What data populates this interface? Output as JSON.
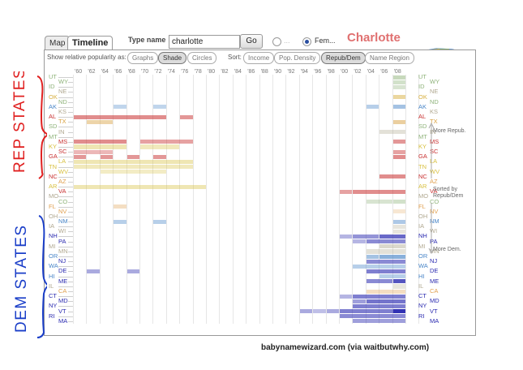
{
  "tabs": [
    {
      "label": "Map"
    },
    {
      "label": "Timeline"
    }
  ],
  "search": {
    "label": "Type name",
    "value": "charlotte",
    "go_label": "Go"
  },
  "gender": {
    "option1": "...",
    "option2": "Fem...",
    "selected": "female"
  },
  "name_title": "Charlotte",
  "toolbar": {
    "show_label": "Show relative popularity as:",
    "show_options": [
      "Graphs",
      "Shade",
      "Circles"
    ],
    "show_selected": "Shade",
    "sort_label": "Sort:",
    "sort_options": [
      "Income",
      "Pop. Density",
      "Repub/Dem",
      "Name Region"
    ],
    "sort_selected": "Repub/Dem"
  },
  "years": [
    "'60",
    "'62",
    "'64",
    "'66",
    "'68",
    "'70",
    "'72",
    "'74",
    "'76",
    "'78",
    "'80",
    "'82",
    "'84",
    "'86",
    "'88",
    "'90",
    "'92",
    "'94",
    "'96",
    "'98",
    "'00",
    "'02",
    "'04",
    "'06",
    "'08"
  ],
  "states": [
    {
      "abbr": "UT",
      "color": "#8fb37a"
    },
    {
      "abbr": "WY",
      "color": "#8fb37a"
    },
    {
      "abbr": "ID",
      "color": "#8fb37a"
    },
    {
      "abbr": "NE",
      "color": "#b0a890"
    },
    {
      "abbr": "OK",
      "color": "#d8b040"
    },
    {
      "abbr": "ND",
      "color": "#8fb37a"
    },
    {
      "abbr": "AK",
      "color": "#4a86c8"
    },
    {
      "abbr": "KS",
      "color": "#b0a890"
    },
    {
      "abbr": "AL",
      "color": "#c83030"
    },
    {
      "abbr": "TX",
      "color": "#d8a040"
    },
    {
      "abbr": "SD",
      "color": "#8fb37a"
    },
    {
      "abbr": "IN",
      "color": "#b0a890"
    },
    {
      "abbr": "MT",
      "color": "#8fb37a"
    },
    {
      "abbr": "MS",
      "color": "#c83030"
    },
    {
      "abbr": "KY",
      "color": "#d8c040"
    },
    {
      "abbr": "SC",
      "color": "#c83030"
    },
    {
      "abbr": "GA",
      "color": "#c83030"
    },
    {
      "abbr": "LA",
      "color": "#d8c040"
    },
    {
      "abbr": "TN",
      "color": "#d8c040"
    },
    {
      "abbr": "WV",
      "color": "#d8c040"
    },
    {
      "abbr": "NC",
      "color": "#c83030"
    },
    {
      "abbr": "AZ",
      "color": "#e0a050"
    },
    {
      "abbr": "AR",
      "color": "#d8c040"
    },
    {
      "abbr": "VA",
      "color": "#c83030"
    },
    {
      "abbr": "MO",
      "color": "#b0a890"
    },
    {
      "abbr": "CO",
      "color": "#8fb37a"
    },
    {
      "abbr": "FL",
      "color": "#e0a050"
    },
    {
      "abbr": "NV",
      "color": "#e0a050"
    },
    {
      "abbr": "OH",
      "color": "#b0a890"
    },
    {
      "abbr": "NM",
      "color": "#4a86c8"
    },
    {
      "abbr": "IA",
      "color": "#b0a890"
    },
    {
      "abbr": "WI",
      "color": "#b0a890"
    },
    {
      "abbr": "NH",
      "color": "#2a2ab0"
    },
    {
      "abbr": "PA",
      "color": "#2a2ab0"
    },
    {
      "abbr": "MI",
      "color": "#b0a890"
    },
    {
      "abbr": "MN",
      "color": "#b0a890"
    },
    {
      "abbr": "OR",
      "color": "#4a86c8"
    },
    {
      "abbr": "NJ",
      "color": "#2a2ab0"
    },
    {
      "abbr": "WA",
      "color": "#4a86c8"
    },
    {
      "abbr": "DE",
      "color": "#2a2ab0"
    },
    {
      "abbr": "HI",
      "color": "#4a86c8"
    },
    {
      "abbr": "ME",
      "color": "#2a2ab0"
    },
    {
      "abbr": "IL",
      "color": "#b0a890"
    },
    {
      "abbr": "CA",
      "color": "#e0a050"
    },
    {
      "abbr": "CT",
      "color": "#2a2ab0"
    },
    {
      "abbr": "MD",
      "color": "#2a2ab0"
    },
    {
      "abbr": "NY",
      "color": "#2a2ab0"
    },
    {
      "abbr": "VT",
      "color": "#2a2ab0"
    },
    {
      "abbr": "RI",
      "color": "#2a2ab0"
    },
    {
      "abbr": "MA",
      "color": "#2a2ab0"
    }
  ],
  "right_annotations": {
    "more_repub": "More Repub.",
    "sorted_by": "Sorted by Repub/Dem",
    "more_dem": "More Dem."
  },
  "handwritten": {
    "rep": "REP STATES",
    "dem": "DEM STATES"
  },
  "credit": "babynamewizard.com (via waitbutwhy.com)",
  "heat_cells": [
    {
      "r": 4,
      "c0": 24,
      "c1": 25,
      "o": 0.5
    },
    {
      "r": 0,
      "c0": 24,
      "c1": 25,
      "o": 0.5
    },
    {
      "r": 1,
      "c0": 24,
      "c1": 25,
      "o": 0.4
    },
    {
      "r": 2,
      "c0": 24,
      "c1": 25,
      "o": 0.35
    },
    {
      "r": 6,
      "c0": 3,
      "c1": 4,
      "o": 0.35
    },
    {
      "r": 6,
      "c0": 6,
      "c1": 7,
      "o": 0.35
    },
    {
      "r": 6,
      "c0": 22,
      "c1": 23,
      "o": 0.4
    },
    {
      "r": 6,
      "c0": 24,
      "c1": 25,
      "o": 0.5
    },
    {
      "r": 8,
      "c0": 0,
      "c1": 7,
      "o": 0.55
    },
    {
      "r": 8,
      "c0": 8,
      "c1": 9,
      "o": 0.5
    },
    {
      "r": 9,
      "c0": 1,
      "c1": 3,
      "o": 0.45
    },
    {
      "r": 9,
      "c0": 24,
      "c1": 25,
      "o": 0.5
    },
    {
      "r": 11,
      "c0": 23,
      "c1": 25,
      "o": 0.35
    },
    {
      "r": 13,
      "c0": 0,
      "c1": 4,
      "o": 0.55
    },
    {
      "r": 13,
      "c0": 5,
      "c1": 9,
      "o": 0.45
    },
    {
      "r": 13,
      "c0": 24,
      "c1": 25,
      "o": 0.5
    },
    {
      "r": 14,
      "c0": 0,
      "c1": 4,
      "o": 0.4
    },
    {
      "r": 14,
      "c0": 5,
      "c1": 8,
      "o": 0.35
    },
    {
      "r": 15,
      "c0": 0,
      "c1": 3,
      "o": 0.35
    },
    {
      "r": 15,
      "c0": 24,
      "c1": 25,
      "o": 0.45
    },
    {
      "r": 16,
      "c0": 0,
      "c1": 1,
      "o": 0.5
    },
    {
      "r": 16,
      "c0": 2,
      "c1": 3,
      "o": 0.5
    },
    {
      "r": 16,
      "c0": 4,
      "c1": 5,
      "o": 0.5
    },
    {
      "r": 16,
      "c0": 6,
      "c1": 7,
      "o": 0.5
    },
    {
      "r": 16,
      "c0": 24,
      "c1": 25,
      "o": 0.55
    },
    {
      "r": 17,
      "c0": 0,
      "c1": 9,
      "o": 0.4
    },
    {
      "r": 18,
      "c0": 0,
      "c1": 9,
      "o": 0.35
    },
    {
      "r": 19,
      "c0": 2,
      "c1": 7,
      "o": 0.3
    },
    {
      "r": 20,
      "c0": 23,
      "c1": 25,
      "o": 0.55
    },
    {
      "r": 22,
      "c0": 0,
      "c1": 10,
      "o": 0.4
    },
    {
      "r": 23,
      "c0": 20,
      "c1": 21,
      "o": 0.45
    },
    {
      "r": 23,
      "c0": 21,
      "c1": 25,
      "o": 0.55
    },
    {
      "r": 25,
      "c0": 22,
      "c1": 24,
      "o": 0.35
    },
    {
      "r": 25,
      "c0": 24,
      "c1": 25,
      "o": 0.4
    },
    {
      "r": 26,
      "c0": 3,
      "c1": 4,
      "o": 0.35
    },
    {
      "r": 27,
      "c0": 24,
      "c1": 25,
      "o": 0.25
    },
    {
      "r": 29,
      "c0": 3,
      "c1": 4,
      "o": 0.4
    },
    {
      "r": 29,
      "c0": 6,
      "c1": 7,
      "o": 0.4
    },
    {
      "r": 29,
      "c0": 24,
      "c1": 25,
      "o": 0.45
    },
    {
      "r": 30,
      "c0": 24,
      "c1": 25,
      "o": 0.3
    },
    {
      "r": 31,
      "c0": 24,
      "c1": 25,
      "o": 0.3
    },
    {
      "r": 32,
      "c0": 20,
      "c1": 21,
      "o": 0.35
    },
    {
      "r": 32,
      "c0": 21,
      "c1": 23,
      "o": 0.5
    },
    {
      "r": 32,
      "c0": 23,
      "c1": 25,
      "o": 0.7
    },
    {
      "r": 33,
      "c0": 21,
      "c1": 22,
      "o": 0.35
    },
    {
      "r": 33,
      "c0": 22,
      "c1": 25,
      "o": 0.55
    },
    {
      "r": 34,
      "c0": 23,
      "c1": 25,
      "o": 0.45
    },
    {
      "r": 35,
      "c0": 22,
      "c1": 25,
      "o": 0.35
    },
    {
      "r": 36,
      "c0": 22,
      "c1": 23,
      "o": 0.5
    },
    {
      "r": 36,
      "c0": 23,
      "c1": 25,
      "o": 0.65
    },
    {
      "r": 37,
      "c0": 22,
      "c1": 25,
      "o": 0.55
    },
    {
      "r": 38,
      "c0": 21,
      "c1": 25,
      "o": 0.4
    },
    {
      "r": 39,
      "c0": 1,
      "c1": 2,
      "o": 0.4
    },
    {
      "r": 39,
      "c0": 4,
      "c1": 5,
      "o": 0.4
    },
    {
      "r": 39,
      "c0": 22,
      "c1": 25,
      "o": 0.6
    },
    {
      "r": 40,
      "c0": 23,
      "c1": 25,
      "o": 0.4
    },
    {
      "r": 41,
      "c0": 22,
      "c1": 24,
      "o": 0.55
    },
    {
      "r": 41,
      "c0": 24,
      "c1": 25,
      "o": 0.8
    },
    {
      "r": 42,
      "c0": 24,
      "c1": 25,
      "o": 0.3
    },
    {
      "r": 43,
      "c0": 22,
      "c1": 25,
      "o": 0.35
    },
    {
      "r": 44,
      "c0": 20,
      "c1": 21,
      "o": 0.35
    },
    {
      "r": 44,
      "c0": 21,
      "c1": 25,
      "o": 0.6
    },
    {
      "r": 45,
      "c0": 21,
      "c1": 22,
      "o": 0.45
    },
    {
      "r": 45,
      "c0": 22,
      "c1": 25,
      "o": 0.65
    },
    {
      "r": 46,
      "c0": 21,
      "c1": 25,
      "o": 0.6
    },
    {
      "r": 47,
      "c0": 17,
      "c1": 18,
      "o": 0.4
    },
    {
      "r": 47,
      "c0": 18,
      "c1": 19,
      "o": 0.3
    },
    {
      "r": 47,
      "c0": 19,
      "c1": 20,
      "o": 0.4
    },
    {
      "r": 47,
      "c0": 20,
      "c1": 25,
      "o": 0.6
    },
    {
      "r": 47,
      "c0": 24,
      "c1": 25,
      "o": 0.9
    },
    {
      "r": 48,
      "c0": 20,
      "c1": 25,
      "o": 0.55
    },
    {
      "r": 49,
      "c0": 21,
      "c1": 25,
      "o": 0.45
    }
  ]
}
